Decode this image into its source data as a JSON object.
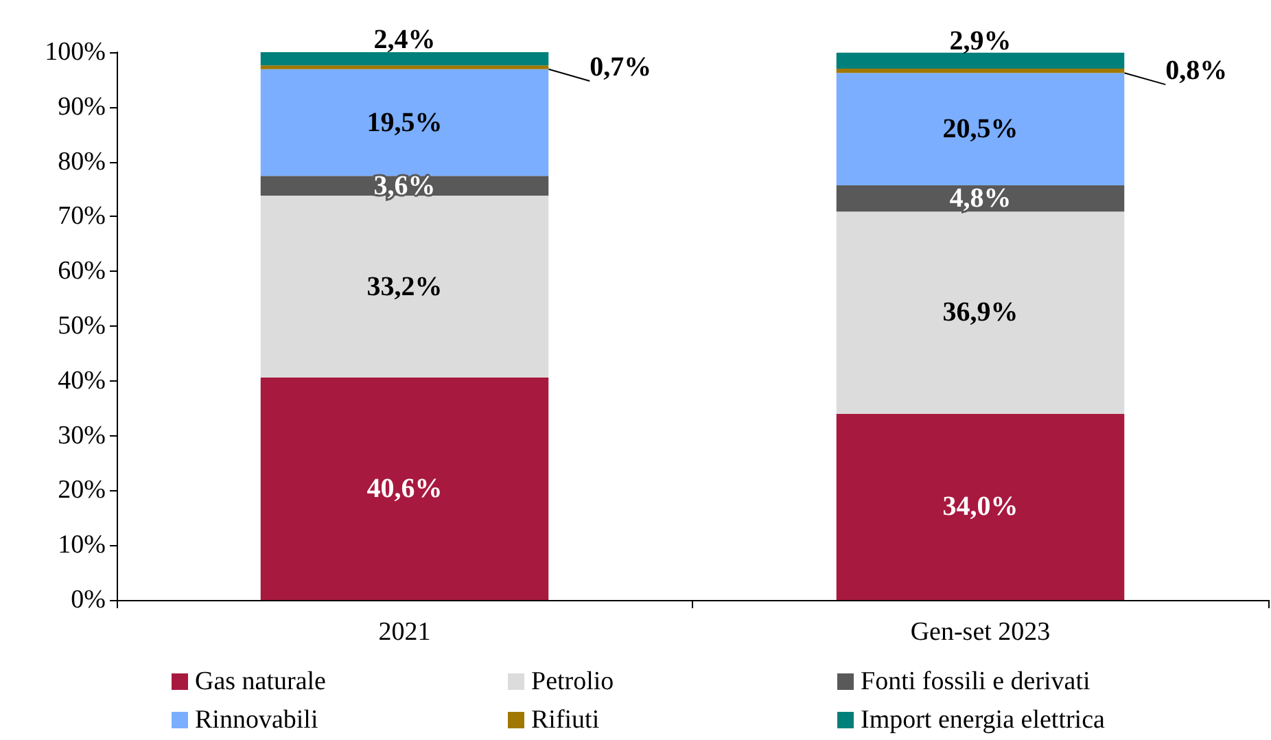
{
  "chart_data": {
    "type": "bar",
    "stacked": true,
    "categories": [
      "2021",
      "Gen-set 2023"
    ],
    "series": [
      {
        "name": "Gas naturale",
        "color": "#a8193f",
        "values": [
          40.6,
          34.0
        ],
        "value_labels": [
          "40,6%",
          "34,0%"
        ]
      },
      {
        "name": "Petrolio",
        "color": "#dcdcdc",
        "values": [
          33.2,
          36.9
        ],
        "value_labels": [
          "33,2%",
          "36,9%"
        ]
      },
      {
        "name": "Fonti fossili e derivati",
        "color": "#595959",
        "values": [
          3.6,
          4.8
        ],
        "value_labels": [
          "3,6%",
          "4,8%"
        ]
      },
      {
        "name": "Rinnovabili",
        "color": "#7baeff",
        "values": [
          19.5,
          20.5
        ],
        "value_labels": [
          "19,5%",
          "20,5%"
        ]
      },
      {
        "name": "Rifiuti",
        "color": "#a07800",
        "values": [
          0.7,
          0.8
        ],
        "value_labels": [
          "0,7%",
          "0,8%"
        ]
      },
      {
        "name": "Import energia elettrica",
        "color": "#00807a",
        "values": [
          2.4,
          2.9
        ],
        "value_labels": [
          "2,4%",
          "2,9%"
        ]
      }
    ],
    "ylim": [
      0,
      100
    ],
    "yticks": [
      {
        "value": 0,
        "label": "0%"
      },
      {
        "value": 10,
        "label": "10%"
      },
      {
        "value": 20,
        "label": "20%"
      },
      {
        "value": 30,
        "label": "30%"
      },
      {
        "value": 40,
        "label": "40%"
      },
      {
        "value": 50,
        "label": "50%"
      },
      {
        "value": 60,
        "label": "60%"
      },
      {
        "value": 70,
        "label": "70%"
      },
      {
        "value": 80,
        "label": "80%"
      },
      {
        "value": 90,
        "label": "90%"
      },
      {
        "value": 100,
        "label": "100%"
      }
    ],
    "grid": false,
    "legend": "bottom"
  }
}
